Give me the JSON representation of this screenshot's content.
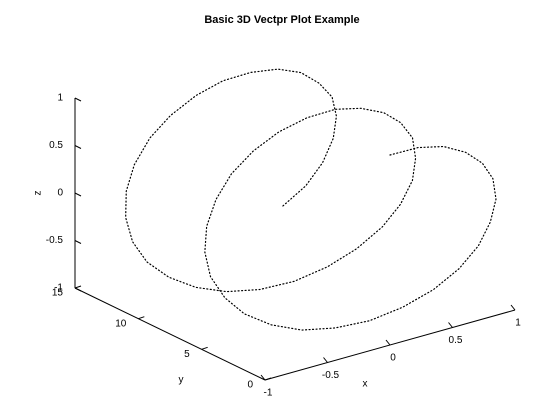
{
  "chart_data": {
    "type": "line3d",
    "title": "Basic 3D Vectpr Plot Example",
    "xlabel": "x",
    "ylabel": "y",
    "zlabel": "z",
    "xlim": [
      -1,
      1
    ],
    "ylim": [
      0,
      15
    ],
    "zlim": [
      -1,
      1
    ],
    "xticks": [
      -1,
      -0.5,
      0,
      0.5,
      1
    ],
    "yticks": [
      0,
      5,
      10,
      15
    ],
    "zticks": [
      -1,
      -0.5,
      0,
      0.5,
      1
    ],
    "series": [
      {
        "color": "#000000",
        "line_style": "dotted",
        "x": [
          0,
          0.25,
          0.48,
          0.68,
          0.84,
          0.95,
          1.0,
          0.98,
          0.91,
          0.78,
          0.6,
          0.38,
          0.14,
          -0.11,
          -0.35,
          -0.57,
          -0.76,
          -0.89,
          -0.98,
          -1.0,
          -0.96,
          -0.86,
          -0.71,
          -0.51,
          -0.28,
          -0.03,
          0.22,
          0.45,
          0.66,
          0.82,
          0.94,
          0.99,
          0.99,
          0.92,
          0.8,
          0.62,
          0.41,
          0.17,
          -0.08,
          -0.32,
          -0.54,
          -0.73,
          -0.88,
          -0.97,
          -1.0,
          -0.97,
          -0.88,
          -0.73,
          -0.54,
          -0.31,
          -0.07,
          0.18,
          0.42,
          0.63,
          0.8,
          0.93,
          0.99,
          0.99,
          0.93,
          0.82,
          0.65
        ],
        "y": [
          0,
          0.25,
          0.5,
          0.75,
          1,
          1.25,
          1.5,
          1.75,
          2,
          2.25,
          2.5,
          2.75,
          3,
          3.25,
          3.5,
          3.75,
          4,
          4.25,
          4.5,
          4.75,
          5,
          5.25,
          5.5,
          5.75,
          6,
          6.25,
          6.5,
          6.75,
          7,
          7.25,
          7.5,
          7.75,
          8,
          8.25,
          8.5,
          8.75,
          9,
          9.25,
          9.5,
          9.75,
          10,
          10.25,
          10.5,
          10.75,
          11,
          11.25,
          11.5,
          11.75,
          12,
          12.25,
          12.5,
          12.75,
          13,
          13.25,
          13.5,
          13.75,
          14,
          14.25,
          14.5,
          14.75,
          15
        ],
        "z": [
          1,
          0.97,
          0.88,
          0.73,
          0.54,
          0.32,
          0.07,
          -0.18,
          -0.42,
          -0.63,
          -0.8,
          -0.92,
          -0.99,
          -0.99,
          -0.94,
          -0.82,
          -0.65,
          -0.45,
          -0.21,
          0.04,
          0.28,
          0.51,
          0.71,
          0.86,
          0.96,
          1.0,
          0.98,
          0.89,
          0.75,
          0.57,
          0.35,
          0.1,
          -0.15,
          -0.39,
          -0.6,
          -0.78,
          -0.91,
          -0.99,
          -1.0,
          -0.95,
          -0.84,
          -0.68,
          -0.48,
          -0.25,
          0.0,
          0.25,
          0.48,
          0.69,
          0.84,
          0.95,
          1.0,
          0.98,
          0.91,
          0.78,
          0.59,
          0.38,
          0.14,
          -0.11,
          -0.36,
          -0.58,
          -0.76
        ]
      }
    ]
  }
}
